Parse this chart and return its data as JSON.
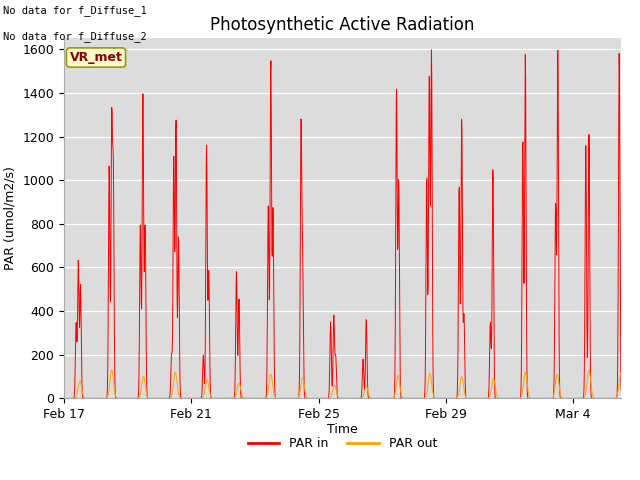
{
  "title": "Photosynthetic Active Radiation",
  "ylabel": "PAR (umol/m2/s)",
  "xlabel": "Time",
  "annotation_line1": "No data for f_Diffuse_1",
  "annotation_line2": "No data for f_Diffuse_2",
  "legend_label": "VR_met",
  "line1_label": "PAR in",
  "line2_label": "PAR out",
  "line1_color": "#ff0000",
  "line2_color": "#ffa500",
  "ylim": [
    0,
    1650
  ],
  "xlim": [
    0,
    17.5
  ],
  "background_color": "#dcdcdc",
  "fig_background": "#ffffff",
  "xtick_labels": [
    "Feb 17",
    "Feb 21",
    "Feb 25",
    "Feb 29",
    "Mar 4"
  ],
  "xtick_positions": [
    0,
    4,
    8,
    12,
    16
  ],
  "ytick_values": [
    0,
    200,
    400,
    600,
    800,
    1000,
    1200,
    1400,
    1600
  ],
  "title_fontsize": 12,
  "axis_fontsize": 9,
  "legend_fontsize": 9
}
